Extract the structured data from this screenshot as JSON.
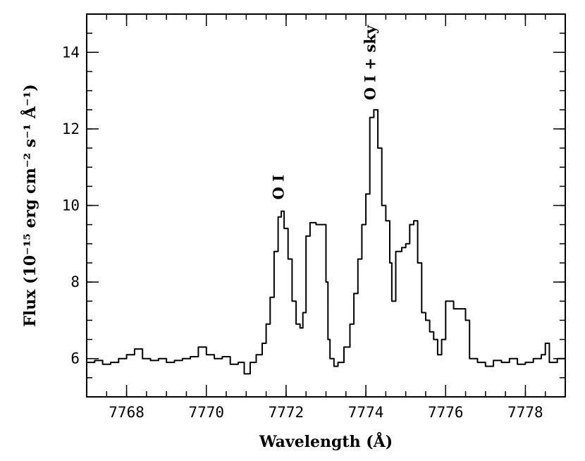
{
  "chart_data": {
    "type": "line",
    "xlabel": "Wavelength (Å)",
    "ylabel": "Flux (10⁻¹⁵ erg cm⁻² s⁻¹ Å⁻¹)",
    "xlim": [
      7767,
      7779
    ],
    "ylim": [
      5,
      15
    ],
    "x_ticks": [
      7768,
      7770,
      7772,
      7774,
      7776,
      7778
    ],
    "y_ticks": [
      6,
      8,
      10,
      12,
      14
    ],
    "x_minor_step": 0.5,
    "y_minor_step": 0.5,
    "grid": false,
    "annotations": [
      {
        "text": "O I",
        "x": 7771.8,
        "y": 10.15
      },
      {
        "text": "O I + sky",
        "x": 7774.1,
        "y": 12.75
      }
    ],
    "series": [
      {
        "color": "#000000",
        "x": [
          7767.0,
          7767.2,
          7767.4,
          7767.6,
          7767.8,
          7768.0,
          7768.2,
          7768.4,
          7768.6,
          7768.8,
          7769.0,
          7769.2,
          7769.4,
          7769.6,
          7769.8,
          7770.0,
          7770.2,
          7770.4,
          7770.6,
          7770.8,
          7770.95,
          7771.1,
          7771.25,
          7771.4,
          7771.5,
          7771.6,
          7771.7,
          7771.8,
          7771.88,
          7771.95,
          7772.05,
          7772.15,
          7772.25,
          7772.35,
          7772.42,
          7772.5,
          7772.6,
          7772.75,
          7772.9,
          7773.0,
          7773.05,
          7773.1,
          7773.2,
          7773.3,
          7773.45,
          7773.6,
          7773.7,
          7773.8,
          7773.9,
          7774.0,
          7774.1,
          7774.2,
          7774.3,
          7774.4,
          7774.5,
          7774.6,
          7774.65,
          7774.75,
          7774.9,
          7775.0,
          7775.1,
          7775.2,
          7775.3,
          7775.4,
          7775.5,
          7775.6,
          7775.7,
          7775.8,
          7775.9,
          7776.0,
          7776.2,
          7776.4,
          7776.5,
          7776.6,
          7776.8,
          7777.0,
          7777.2,
          7777.4,
          7777.6,
          7777.8,
          7778.0,
          7778.2,
          7778.4,
          7778.5,
          7778.6,
          7778.8,
          7779.0
        ],
        "y": [
          5.9,
          5.95,
          5.85,
          5.9,
          6.0,
          6.1,
          6.25,
          6.0,
          5.95,
          6.0,
          5.9,
          5.95,
          6.0,
          6.05,
          6.3,
          6.1,
          6.0,
          6.05,
          5.85,
          5.9,
          5.6,
          5.9,
          6.1,
          6.4,
          6.9,
          7.6,
          8.8,
          9.7,
          9.85,
          9.4,
          8.6,
          7.5,
          6.9,
          6.8,
          7.2,
          9.2,
          9.55,
          9.5,
          9.5,
          8.0,
          6.5,
          6.0,
          5.8,
          5.9,
          6.3,
          6.9,
          7.7,
          8.6,
          9.5,
          10.3,
          12.3,
          12.5,
          11.5,
          10.0,
          9.6,
          8.5,
          7.5,
          8.8,
          8.9,
          9.0,
          9.5,
          9.6,
          8.5,
          7.2,
          7.0,
          6.7,
          6.5,
          6.1,
          6.5,
          7.5,
          7.3,
          7.3,
          7.0,
          6.0,
          5.9,
          5.8,
          5.95,
          5.9,
          6.0,
          5.85,
          5.9,
          6.0,
          6.1,
          6.4,
          5.9,
          6.0,
          5.95
        ]
      }
    ]
  }
}
